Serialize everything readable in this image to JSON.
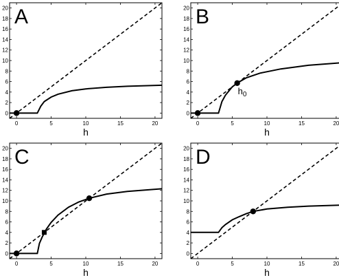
{
  "chart_data": [
    {
      "type": "line",
      "panel_label": "A",
      "xlabel": "h",
      "xlim": [
        -1,
        21
      ],
      "ylim": [
        -1,
        21
      ],
      "xticks": [
        "0",
        "5",
        "10",
        "15",
        "20"
      ],
      "yticks": [
        "0",
        "2",
        "4",
        "6",
        "8",
        "10",
        "12",
        "14",
        "16",
        "18",
        "20"
      ],
      "diagonal": {
        "style": "dashed",
        "x": [
          -1,
          21
        ],
        "y": [
          -1,
          21
        ]
      },
      "series": [
        {
          "style": "solid",
          "x": [
            -1,
            3,
            3.5,
            4,
            5,
            6,
            8,
            10,
            13,
            16,
            21
          ],
          "y": [
            0,
            0,
            1.3,
            2.2,
            3.05,
            3.6,
            4.25,
            4.6,
            4.9,
            5.1,
            5.3
          ]
        }
      ],
      "markers": [
        {
          "shape": "circle",
          "x": 0,
          "y": 0
        }
      ],
      "annotations": []
    },
    {
      "type": "line",
      "panel_label": "B",
      "xlabel": "h",
      "xlim": [
        -1,
        21
      ],
      "ylim": [
        -1,
        21
      ],
      "xticks": [
        "0",
        "5",
        "10",
        "15",
        "20"
      ],
      "yticks": [
        "0",
        "2",
        "4",
        "6",
        "8",
        "10",
        "12",
        "14",
        "16",
        "18",
        "20"
      ],
      "diagonal": {
        "style": "dashed",
        "x": [
          -1,
          21
        ],
        "y": [
          -1,
          21
        ]
      },
      "series": [
        {
          "style": "solid",
          "x": [
            -1,
            3,
            3.5,
            4,
            5,
            5.7,
            7,
            9,
            12,
            16,
            21
          ],
          "y": [
            0,
            0,
            2.2,
            3.4,
            5.0,
            5.7,
            6.7,
            7.6,
            8.4,
            9.1,
            9.6
          ]
        }
      ],
      "markers": [
        {
          "shape": "circle",
          "x": 0,
          "y": 0
        },
        {
          "shape": "circle",
          "x": 5.7,
          "y": 5.7
        }
      ],
      "annotations": [
        {
          "text": "h0",
          "x": 5.8,
          "y": 3.6
        }
      ]
    },
    {
      "type": "line",
      "panel_label": "C",
      "xlabel": "h",
      "xlim": [
        -1,
        21
      ],
      "ylim": [
        -1,
        21
      ],
      "xticks": [
        "0",
        "5",
        "10",
        "15",
        "20"
      ],
      "yticks": [
        "0",
        "2",
        "4",
        "6",
        "8",
        "10",
        "12",
        "14",
        "16",
        "18",
        "20"
      ],
      "diagonal": {
        "style": "dashed",
        "x": [
          -1,
          21
        ],
        "y": [
          -1,
          21
        ]
      },
      "series": [
        {
          "style": "solid",
          "x": [
            -1,
            3,
            3.3,
            3.7,
            4.3,
            5,
            6,
            7.5,
            9,
            10.5,
            13,
            16,
            21
          ],
          "y": [
            0,
            0,
            1.9,
            3.1,
            4.6,
            5.9,
            7.3,
            8.8,
            9.8,
            10.5,
            11.3,
            11.8,
            12.3
          ]
        }
      ],
      "markers": [
        {
          "shape": "circle",
          "x": 0,
          "y": 0
        },
        {
          "shape": "square",
          "x": 4,
          "y": 4
        },
        {
          "shape": "circle",
          "x": 10.5,
          "y": 10.5
        }
      ],
      "annotations": []
    },
    {
      "type": "line",
      "panel_label": "D",
      "xlabel": "h",
      "xlim": [
        -1,
        21
      ],
      "ylim": [
        -1,
        21
      ],
      "xticks": [
        "0",
        "5",
        "10",
        "15",
        "20"
      ],
      "yticks": [
        "0",
        "2",
        "4",
        "6",
        "8",
        "10",
        "12",
        "14",
        "16",
        "18",
        "20"
      ],
      "diagonal": {
        "style": "dashed",
        "x": [
          -1,
          21
        ],
        "y": [
          -1,
          21
        ]
      },
      "series": [
        {
          "style": "solid",
          "x": [
            -1,
            3,
            3.5,
            4,
            5,
            6,
            7,
            8,
            10,
            13,
            16,
            21
          ],
          "y": [
            4,
            4,
            4.9,
            5.5,
            6.4,
            7.0,
            7.55,
            8.0,
            8.45,
            8.8,
            9.0,
            9.2
          ]
        }
      ],
      "markers": [
        {
          "shape": "circle",
          "x": 8,
          "y": 8
        }
      ],
      "annotations": []
    }
  ]
}
